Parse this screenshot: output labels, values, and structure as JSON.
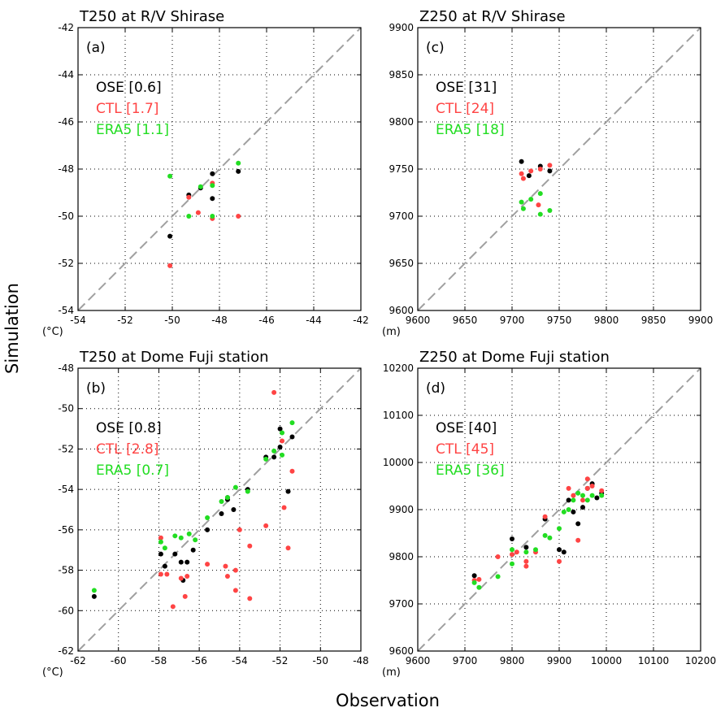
{
  "figure": {
    "ylabel": "Simulation",
    "xlabel": "Observation"
  },
  "chart_data": [
    {
      "type": "scatter",
      "title": "T250 at R/V Shirase",
      "panel": "(a)",
      "unit": "(°C)",
      "xlim": [
        -54,
        -42
      ],
      "ylim": [
        -54,
        -42
      ],
      "xticks": [
        "-54",
        "-52",
        "-50",
        "-48",
        "-46",
        "-44",
        "-42"
      ],
      "yticks": [
        "-54",
        "-52",
        "-50",
        "-48",
        "-46",
        "-44",
        "-42"
      ],
      "grid": true,
      "diagonal": true,
      "legend_position": "top-left",
      "series": [
        {
          "name": "OSE",
          "score": "[0.6]",
          "color": "#000000",
          "points": [
            [
              -50.1,
              -50.85
            ],
            [
              -48.8,
              -48.8
            ],
            [
              -48.3,
              -48.2
            ],
            [
              -48.3,
              -49.25
            ],
            [
              -47.2,
              -48.1
            ],
            [
              -49.3,
              -49.1
            ]
          ]
        },
        {
          "name": "CTL",
          "score": "[1.7]",
          "color": "#ff4444",
          "points": [
            [
              -50.1,
              -52.1
            ],
            [
              -49.3,
              -49.2
            ],
            [
              -48.9,
              -49.85
            ],
            [
              -48.3,
              -48.6
            ],
            [
              -48.3,
              -50.1
            ],
            [
              -47.2,
              -50.0
            ]
          ]
        },
        {
          "name": "ERA5",
          "score": "[1.1]",
          "color": "#22dd22",
          "points": [
            [
              -50.1,
              -48.3
            ],
            [
              -49.3,
              -50.0
            ],
            [
              -48.8,
              -48.75
            ],
            [
              -48.3,
              -48.7
            ],
            [
              -48.3,
              -50.0
            ],
            [
              -47.2,
              -47.75
            ]
          ]
        }
      ]
    },
    {
      "type": "scatter",
      "title": "Z250 at R/V Shirase",
      "panel": "(c)",
      "unit": "(m)",
      "xlim": [
        9600,
        9900
      ],
      "ylim": [
        9600,
        9900
      ],
      "xticks": [
        "9600",
        "9650",
        "9700",
        "9750",
        "9800",
        "9850",
        "9900"
      ],
      "yticks": [
        "9600",
        "9650",
        "9700",
        "9750",
        "9800",
        "9850",
        "9900"
      ],
      "grid": true,
      "diagonal": true,
      "legend_position": "top-left",
      "series": [
        {
          "name": "OSE",
          "score": "[31]",
          "color": "#000000",
          "points": [
            [
              9710,
              9758
            ],
            [
              9718,
              9743
            ],
            [
              9730,
              9753
            ],
            [
              9740,
              9748
            ]
          ]
        },
        {
          "name": "CTL",
          "score": "[24]",
          "color": "#ff4444",
          "points": [
            [
              9710,
              9745
            ],
            [
              9712,
              9740
            ],
            [
              9720,
              9748
            ],
            [
              9730,
              9750
            ],
            [
              9740,
              9754
            ],
            [
              9728,
              9712
            ]
          ]
        },
        {
          "name": "ERA5",
          "score": "[18]",
          "color": "#22dd22",
          "points": [
            [
              9710,
              9715
            ],
            [
              9712,
              9708
            ],
            [
              9720,
              9718
            ],
            [
              9730,
              9724
            ],
            [
              9730,
              9702
            ],
            [
              9740,
              9706
            ]
          ]
        }
      ]
    },
    {
      "type": "scatter",
      "title": "T250 at Dome Fuji station",
      "panel": "(b)",
      "unit": "(°C)",
      "xlim": [
        -62,
        -48
      ],
      "ylim": [
        -62,
        -48
      ],
      "xticks": [
        "-62",
        "-60",
        "-58",
        "-56",
        "-54",
        "-52",
        "-50",
        "-48"
      ],
      "yticks": [
        "-62",
        "-60",
        "-58",
        "-56",
        "-54",
        "-52",
        "-50",
        "-48"
      ],
      "grid": true,
      "diagonal": true,
      "legend_position": "top-left",
      "series": [
        {
          "name": "OSE",
          "score": "[0.8]",
          "color": "#000000",
          "points": [
            [
              -61.2,
              -59.3
            ],
            [
              -57.9,
              -57.2
            ],
            [
              -57.7,
              -57.8
            ],
            [
              -57.2,
              -57.2
            ],
            [
              -56.9,
              -57.6
            ],
            [
              -56.8,
              -58.5
            ],
            [
              -56.6,
              -57.6
            ],
            [
              -56.3,
              -57.0
            ],
            [
              -55.6,
              -56.0
            ],
            [
              -54.9,
              -55.2
            ],
            [
              -54.6,
              -54.4
            ],
            [
              -54.3,
              -55.0
            ],
            [
              -53.6,
              -54.0
            ],
            [
              -52.7,
              -52.4
            ],
            [
              -52.3,
              -52.4
            ],
            [
              -52.0,
              -51.9
            ],
            [
              -51.6,
              -54.1
            ],
            [
              -51.4,
              -51.4
            ],
            [
              -52.0,
              -51.0
            ],
            [
              -54.6,
              -54.5
            ]
          ]
        },
        {
          "name": "CTL",
          "score": "[2.8]",
          "color": "#ff4444",
          "points": [
            [
              -57.9,
              -58.2
            ],
            [
              -57.6,
              -58.2
            ],
            [
              -57.3,
              -59.8
            ],
            [
              -56.9,
              -58.4
            ],
            [
              -56.6,
              -58.3
            ],
            [
              -56.7,
              -59.3
            ],
            [
              -55.6,
              -57.7
            ],
            [
              -54.7,
              -57.8
            ],
            [
              -54.6,
              -58.3
            ],
            [
              -54.2,
              -58.0
            ],
            [
              -54.2,
              -59.0
            ],
            [
              -54.0,
              -56.0
            ],
            [
              -53.5,
              -59.4
            ],
            [
              -53.5,
              -56.8
            ],
            [
              -52.7,
              -55.8
            ],
            [
              -52.3,
              -49.2
            ],
            [
              -51.8,
              -54.9
            ],
            [
              -51.6,
              -56.9
            ],
            [
              -51.4,
              -53.1
            ],
            [
              -57.9,
              -56.4
            ],
            [
              -51.9,
              -51.6
            ]
          ]
        },
        {
          "name": "ERA5",
          "score": "[0.7]",
          "color": "#22dd22",
          "points": [
            [
              -61.2,
              -59.0
            ],
            [
              -57.9,
              -56.6
            ],
            [
              -57.7,
              -56.9
            ],
            [
              -57.2,
              -56.3
            ],
            [
              -56.9,
              -56.4
            ],
            [
              -56.5,
              -56.2
            ],
            [
              -56.2,
              -56.5
            ],
            [
              -55.6,
              -55.4
            ],
            [
              -54.9,
              -54.6
            ],
            [
              -54.6,
              -54.4
            ],
            [
              -54.2,
              -53.9
            ],
            [
              -53.6,
              -54.1
            ],
            [
              -52.7,
              -52.5
            ],
            [
              -52.3,
              -52.1
            ],
            [
              -51.9,
              -51.2
            ],
            [
              -51.4,
              -50.7
            ],
            [
              -51.9,
              -52.3
            ]
          ]
        }
      ]
    },
    {
      "type": "scatter",
      "title": "Z250 at Dome Fuji station",
      "panel": "(d)",
      "unit": "(m)",
      "xlim": [
        9600,
        10200
      ],
      "ylim": [
        9600,
        10200
      ],
      "xticks": [
        "9600",
        "9700",
        "9800",
        "9900",
        "10000",
        "10100",
        "10200"
      ],
      "yticks": [
        "9600",
        "9700",
        "9800",
        "9900",
        "10000",
        "10100",
        "10200"
      ],
      "grid": true,
      "diagonal": true,
      "legend_position": "top-left",
      "series": [
        {
          "name": "OSE",
          "score": "[40]",
          "color": "#000000",
          "points": [
            [
              9720,
              9760
            ],
            [
              9800,
              9838
            ],
            [
              9830,
              9820
            ],
            [
              9870,
              9880
            ],
            [
              9900,
              9815
            ],
            [
              9910,
              9810
            ],
            [
              9920,
              9920
            ],
            [
              9930,
              9895
            ],
            [
              9940,
              9870
            ],
            [
              9950,
              9905
            ],
            [
              9960,
              9945
            ],
            [
              9970,
              9955
            ],
            [
              9990,
              9935
            ],
            [
              9980,
              9925
            ]
          ]
        },
        {
          "name": "CTL",
          "score": "[45]",
          "color": "#ff4444",
          "points": [
            [
              9720,
              9750
            ],
            [
              9730,
              9752
            ],
            [
              9770,
              9800
            ],
            [
              9800,
              9805
            ],
            [
              9810,
              9810
            ],
            [
              9830,
              9790
            ],
            [
              9830,
              9780
            ],
            [
              9850,
              9810
            ],
            [
              9870,
              9885
            ],
            [
              9900,
              9790
            ],
            [
              9920,
              9945
            ],
            [
              9930,
              9930
            ],
            [
              9940,
              9835
            ],
            [
              9950,
              9920
            ],
            [
              9960,
              9965
            ],
            [
              9960,
              9945
            ],
            [
              9970,
              9950
            ],
            [
              9990,
              9940
            ]
          ]
        },
        {
          "name": "ERA5",
          "score": "[36]",
          "color": "#22dd22",
          "points": [
            [
              9720,
              9745
            ],
            [
              9730,
              9735
            ],
            [
              9770,
              9758
            ],
            [
              9800,
              9815
            ],
            [
              9800,
              9785
            ],
            [
              9830,
              9810
            ],
            [
              9850,
              9815
            ],
            [
              9870,
              9845
            ],
            [
              9880,
              9840
            ],
            [
              9900,
              9860
            ],
            [
              9910,
              9895
            ],
            [
              9920,
              9900
            ],
            [
              9930,
              9920
            ],
            [
              9940,
              9935
            ],
            [
              9950,
              9930
            ],
            [
              9960,
              9920
            ],
            [
              9970,
              9930
            ],
            [
              9990,
              9930
            ]
          ]
        }
      ]
    }
  ]
}
